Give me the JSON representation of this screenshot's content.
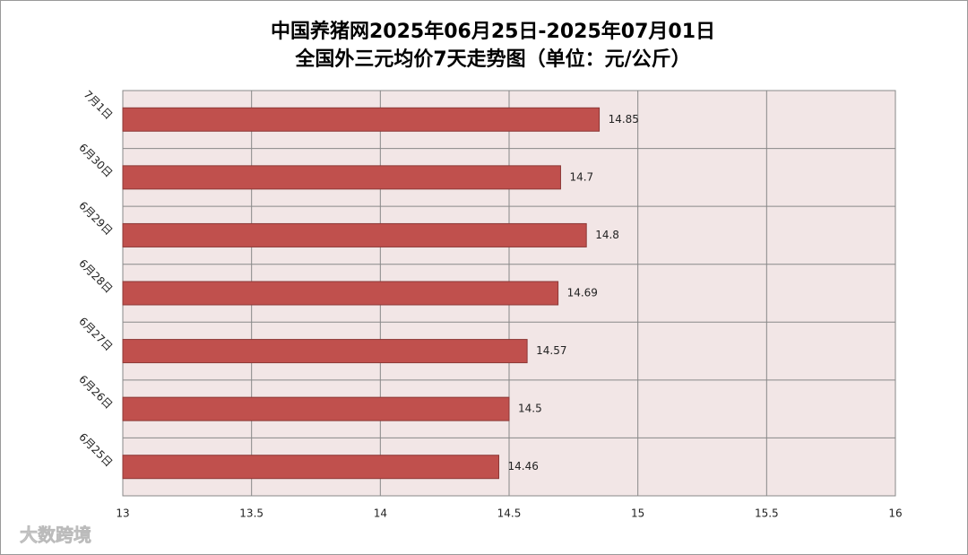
{
  "chart_data": {
    "type": "hbar",
    "title": "中国养猪网2025年06月25日-2025年07月01日",
    "subtitle": "全国外三元均价7天走势图（单位：元/公斤）",
    "categories": [
      "7月1日",
      "6月30日",
      "6月29日",
      "6月28日",
      "6月27日",
      "6月26日",
      "6月25日"
    ],
    "values": [
      14.85,
      14.7,
      14.8,
      14.69,
      14.57,
      14.5,
      14.46
    ],
    "color": "#c0504d",
    "xlim": [
      13,
      16
    ],
    "xticks": [
      13,
      13.5,
      14,
      14.5,
      15,
      15.5,
      16
    ],
    "grid": true
  },
  "watermark": "大数跨境"
}
